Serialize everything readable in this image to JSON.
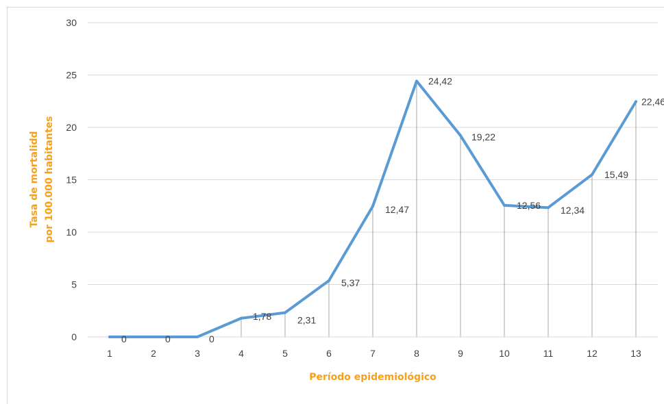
{
  "chart_data": {
    "type": "line",
    "title": "",
    "xlabel": "Período epidemiológico",
    "ylabel_lines": [
      "Tasa de mortalidd",
      "por 100.000 habitantes"
    ],
    "categories": [
      "1",
      "2",
      "3",
      "4",
      "5",
      "6",
      "7",
      "8",
      "9",
      "10",
      "11",
      "12",
      "13"
    ],
    "series": [
      {
        "values": [
          0,
          0,
          0,
          1.78,
          2.31,
          5.37,
          12.47,
          24.42,
          19.22,
          12.56,
          12.34,
          15.49,
          22.46
        ]
      }
    ],
    "data_labels": [
      "0",
      "0",
      "0",
      "1,78",
      "2,31",
      "5,37",
      "12,47",
      "24,42",
      "19,22",
      "12,56",
      "12,34",
      "15,49",
      "22,46"
    ],
    "ylim": [
      0,
      30
    ],
    "yticks": [
      "0",
      "5",
      "10",
      "15",
      "20",
      "25",
      "30"
    ],
    "grid": true,
    "drop_lines": true,
    "legend": "none",
    "colors": {
      "series_line": "#5b9bd5",
      "axis_title": "#f7a11a",
      "gridline": "#d9d9d9",
      "drop_line": "#a6a6a6",
      "text": "#404040"
    }
  }
}
